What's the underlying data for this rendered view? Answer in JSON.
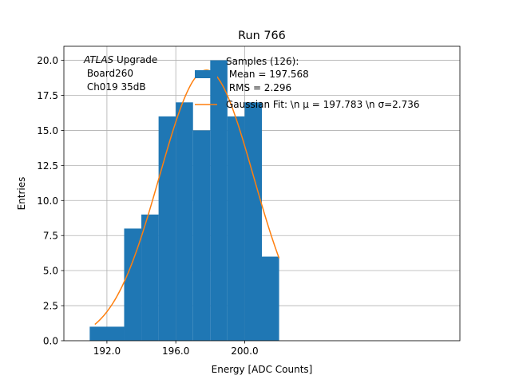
{
  "chart_data": {
    "type": "bar",
    "title": "Run 766",
    "xlabel": "Energy [ADC Counts]",
    "ylabel": "Entries",
    "xlim": [
      189.5,
      212.5
    ],
    "ylim": [
      0,
      21
    ],
    "grid": true,
    "x_ticks": [
      {
        "value": 192,
        "label": "192.0"
      },
      {
        "value": 196,
        "label": "196.0"
      },
      {
        "value": 200,
        "label": "200.0"
      }
    ],
    "y_ticks": [
      {
        "value": 0,
        "label": "0.0"
      },
      {
        "value": 2.5,
        "label": "2.5"
      },
      {
        "value": 5,
        "label": "5.0"
      },
      {
        "value": 7.5,
        "label": "7.5"
      },
      {
        "value": 10,
        "label": "10.0"
      },
      {
        "value": 12.5,
        "label": "12.5"
      },
      {
        "value": 15,
        "label": "15.0"
      },
      {
        "value": 17.5,
        "label": "17.5"
      },
      {
        "value": 20,
        "label": "20.0"
      }
    ],
    "histogram": {
      "color": "#1f77b4",
      "bins": [
        {
          "x0": 191,
          "x1": 193,
          "count": 1
        },
        {
          "x0": 193,
          "x1": 194,
          "count": 8
        },
        {
          "x0": 194,
          "x1": 195,
          "count": 9
        },
        {
          "x0": 195,
          "x1": 196,
          "count": 16
        },
        {
          "x0": 196,
          "x1": 197,
          "count": 17
        },
        {
          "x0": 197,
          "x1": 198,
          "count": 15
        },
        {
          "x0": 198,
          "x1": 199,
          "count": 20
        },
        {
          "x0": 199,
          "x1": 200,
          "count": 16
        },
        {
          "x0": 200,
          "x1": 201,
          "count": 17
        },
        {
          "x0": 201,
          "x1": 202,
          "count": 6
        }
      ]
    },
    "fit": {
      "color": "#ff7f0e",
      "kind": "gaussian",
      "mu": 197.783,
      "sigma": 2.736,
      "amplitude": 19.3,
      "x_range": [
        191.3,
        202
      ]
    },
    "legend": {
      "placement": "top-right",
      "entries": [
        {
          "kind": "patch",
          "color": "#1f77b4",
          "lines": [
            "Samples (126):",
            " Mean = 197.568",
            " RMS = 2.296"
          ]
        },
        {
          "kind": "line",
          "color": "#ff7f0e",
          "text": "Gaussian Fit: \\n μ = 197.783 \\n σ=2.736"
        }
      ]
    },
    "annotation": {
      "italic": "ATLAS",
      "rest": " Upgrade",
      "lines": [
        " Board260",
        " Ch019 35dB"
      ]
    }
  }
}
